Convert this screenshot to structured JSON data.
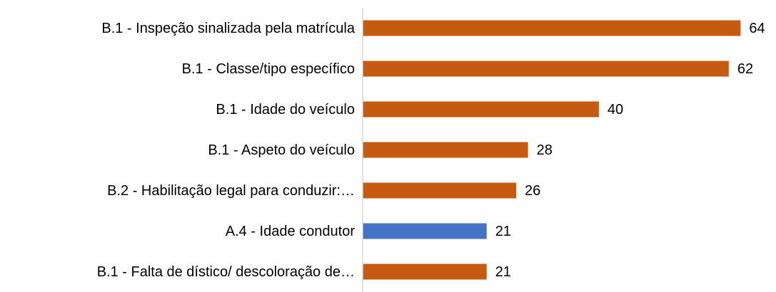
{
  "chart_data": {
    "type": "barh",
    "categories": [
      "B.1 - Inspeção sinalizada pela matrícula",
      "B.1 - Classe/tipo específico",
      "B.1 - Idade do veículo",
      "B.1 - Aspeto do veículo",
      "B.2 - Habilitação legal para conduzir:…",
      "A.4 - Idade condutor",
      "B.1 - Falta de dístico/ descoloração de…"
    ],
    "values": [
      64,
      62,
      40,
      28,
      26,
      21,
      21
    ],
    "colors": [
      "#c55a11",
      "#c55a11",
      "#c55a11",
      "#c55a11",
      "#c55a11",
      "#4472c4",
      "#c55a11"
    ],
    "xlim": [
      0,
      70
    ]
  }
}
